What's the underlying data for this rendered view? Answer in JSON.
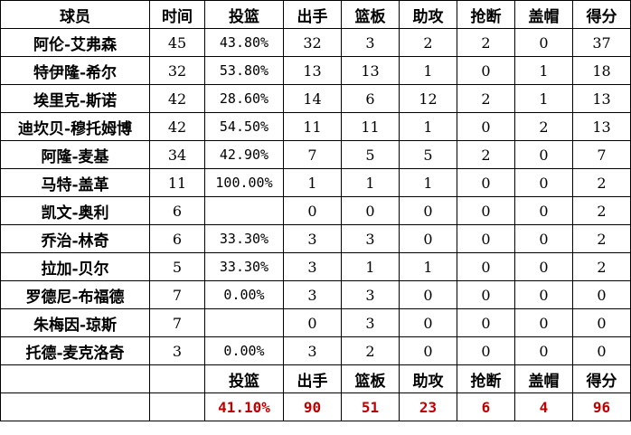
{
  "headers": [
    "球员",
    "时间",
    "投篮",
    "出手",
    "篮板",
    "助攻",
    "抢断",
    "盖帽",
    "得分"
  ],
  "rows": [
    [
      "阿伦-艾弗森",
      "45",
      "43.80%",
      "32",
      "3",
      "2",
      "2",
      "0",
      "37"
    ],
    [
      "特伊隆-希尔",
      "32",
      "53.80%",
      "13",
      "13",
      "1",
      "0",
      "1",
      "18"
    ],
    [
      "埃里克-斯诺",
      "42",
      "28.60%",
      "14",
      "6",
      "12",
      "2",
      "1",
      "13"
    ],
    [
      "迪坎贝-穆托姆博",
      "42",
      "54.50%",
      "11",
      "11",
      "1",
      "0",
      "2",
      "13"
    ],
    [
      "阿隆-麦基",
      "34",
      "42.90%",
      "7",
      "5",
      "5",
      "2",
      "0",
      "7"
    ],
    [
      "马特-盖革",
      "11",
      "100.00%",
      "1",
      "1",
      "1",
      "0",
      "0",
      "2"
    ],
    [
      "凯文-奥利",
      "6",
      "",
      "0",
      "0",
      "0",
      "0",
      "0",
      "2"
    ],
    [
      "乔治-林奇",
      "6",
      "33.30%",
      "3",
      "3",
      "0",
      "0",
      "0",
      "2"
    ],
    [
      "拉加-贝尔",
      "5",
      "33.30%",
      "3",
      "1",
      "1",
      "0",
      "0",
      "2"
    ],
    [
      "罗德尼-布福德",
      "7",
      "0.00%",
      "3",
      "3",
      "0",
      "0",
      "0",
      "0"
    ],
    [
      "朱梅因-琼斯",
      "7",
      "",
      "0",
      "3",
      "0",
      "0",
      "0",
      "0"
    ],
    [
      "托德-麦克洛奇",
      "3",
      "0.00%",
      "3",
      "2",
      "0",
      "0",
      "0",
      "0"
    ]
  ],
  "summary_headers": [
    "",
    "",
    "投篮",
    "出手",
    "篮板",
    "助攻",
    "抢断",
    "盖帽",
    "得分"
  ],
  "totals": [
    "",
    "",
    "41.10%",
    "90",
    "51",
    "23",
    "6",
    "4",
    "96"
  ],
  "colors": {
    "totals": "#c00000"
  }
}
